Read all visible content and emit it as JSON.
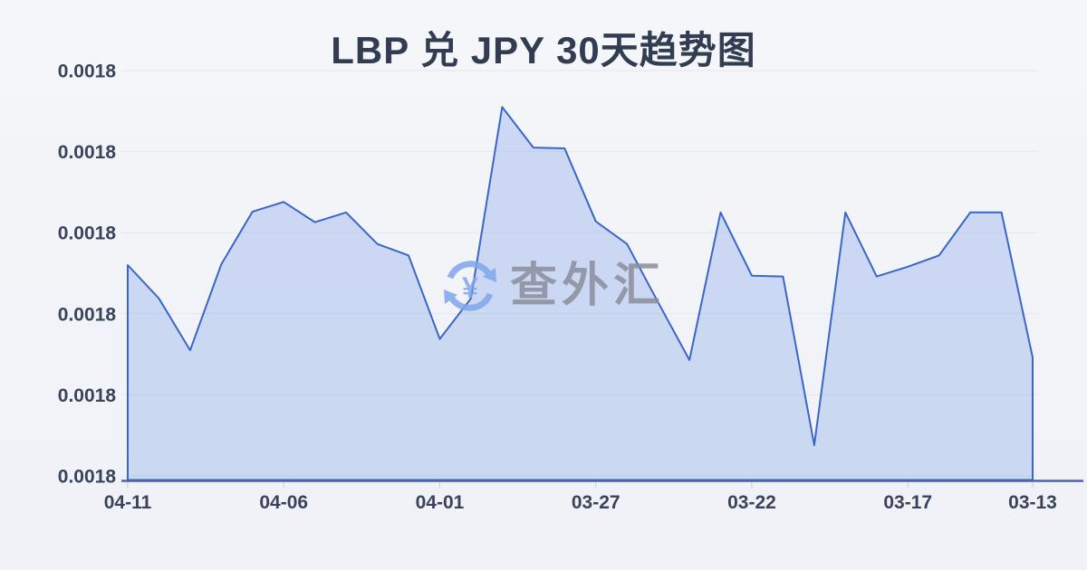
{
  "title": "LBP 兑 JPY 30天趋势图",
  "watermark": {
    "text": "查外汇",
    "icon_symbol": "¥"
  },
  "colors": {
    "background": "#f2f4f8",
    "title_text": "#333d52",
    "axis_label_text": "#39435a",
    "grid_line": "#e3e6ec",
    "series_line": "#3a67c6",
    "series_fill": "rgba(125,158,233,0.32)",
    "axis_line": "#4a66a4",
    "tick_mark": "#c8ccd5",
    "watermark_text": "#8a8f9b",
    "watermark_icon": "#7fa6ea"
  },
  "chart_data": {
    "type": "area",
    "title": "LBP 兑 JPY 30天趋势图",
    "xlabel": "",
    "ylabel": "",
    "x_reversed_time": true,
    "grid": true,
    "legend": false,
    "y_axis_min": 0.001755,
    "y_axis_max": 0.001805,
    "y_tick_labels": [
      "0.0018",
      "0.0018",
      "0.0018",
      "0.0018",
      "0.0018",
      "0.0018"
    ],
    "x_tick_labels": [
      "04-11",
      "04-06",
      "04-01",
      "03-27",
      "03-22",
      "03-17",
      "03-13"
    ],
    "x_tick_indices": [
      0,
      5,
      10,
      15,
      20,
      25,
      29
    ],
    "x": [
      "04-11",
      "04-10",
      "04-09",
      "04-08",
      "04-07",
      "04-06",
      "04-05",
      "04-04",
      "04-03",
      "04-02",
      "04-01",
      "03-31",
      "03-30",
      "03-29",
      "03-28",
      "03-27",
      "03-26",
      "03-25",
      "03-24",
      "03-23",
      "03-22",
      "03-21",
      "03-20",
      "03-19",
      "03-18",
      "03-17",
      "03-16",
      "03-15",
      "03-14",
      "03-13"
    ],
    "series": [
      {
        "name": "LBP/JPY",
        "values": [
          0.001781,
          0.0017769,
          0.0017705,
          0.0017811,
          0.0017876,
          0.0017888,
          0.0017863,
          0.0017875,
          0.0017836,
          0.0017822,
          0.0017719,
          0.0017769,
          0.0018005,
          0.0017955,
          0.0017954,
          0.0017864,
          0.0017836,
          0.0017764,
          0.0017693,
          0.0017875,
          0.0017797,
          0.0017796,
          0.0017588,
          0.0017875,
          0.0017796,
          0.0017808,
          0.0017822,
          0.0017875,
          0.0017875,
          0.0017696
        ]
      }
    ]
  }
}
